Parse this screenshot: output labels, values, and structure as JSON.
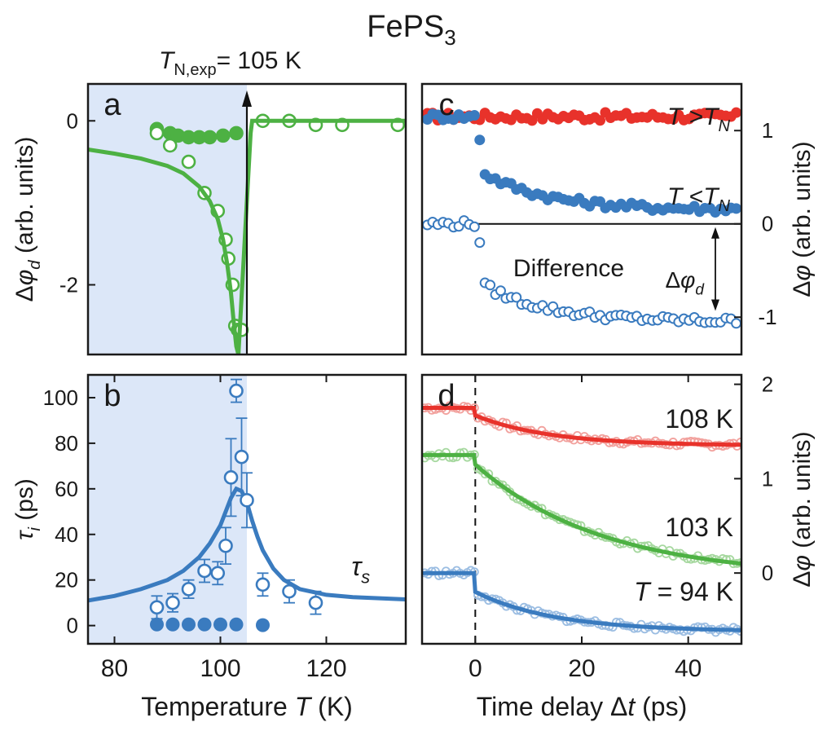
{
  "figure": {
    "title": "FePS",
    "title_sub": "3",
    "annotation_main": "T",
    "annotation_sub": "N,exp",
    "annotation_rest": "= 105 K"
  },
  "colors": {
    "green": "#4db143",
    "red": "#e8322b",
    "blue": "#3a7bbf",
    "shade": "#dce7f8",
    "axis": "#1a1a1a"
  },
  "chart_data": [
    {
      "panel": "a",
      "type": "scatter",
      "xlim": [
        75,
        135
      ],
      "ylim": [
        -2.85,
        0.45
      ],
      "yticks": [
        0,
        -2
      ],
      "ytick_labels": [
        "0",
        "-2"
      ],
      "ylabel": "Δφ_d (arb. units)",
      "shaded_region_x": [
        75,
        105
      ],
      "tn_arrow_x": 105,
      "series": [
        {
          "name": "filled",
          "style": "filled",
          "color": "green",
          "x": [
            88,
            90.5,
            92,
            94,
            96,
            98,
            100.5,
            103
          ],
          "y": [
            -0.1,
            -0.15,
            -0.18,
            -0.2,
            -0.2,
            -0.2,
            -0.18,
            -0.15
          ]
        },
        {
          "name": "open",
          "style": "open",
          "color": "green",
          "x": [
            88,
            90.5,
            94,
            97,
            99.5,
            101,
            101.5,
            102.3,
            102.8,
            103.3,
            104,
            108,
            113,
            118,
            123,
            133.5
          ],
          "y": [
            -0.15,
            -0.3,
            -0.5,
            -0.88,
            -1.1,
            -1.45,
            -1.68,
            -2.0,
            -2.5,
            -2.55,
            -2.55,
            0,
            0,
            -0.05,
            -0.05,
            -0.05
          ]
        },
        {
          "name": "fit",
          "style": "line",
          "color": "green",
          "x": [
            75,
            80,
            85,
            90,
            93,
            96,
            98,
            99.5,
            100.5,
            101.3,
            102,
            102.5,
            103,
            103.4,
            105.7,
            106,
            110,
            120,
            135
          ],
          "y": [
            -0.35,
            -0.4,
            -0.46,
            -0.55,
            -0.64,
            -0.8,
            -0.98,
            -1.2,
            -1.45,
            -1.75,
            -2.1,
            -2.45,
            -2.75,
            -2.85,
            -0.15,
            0,
            0,
            0,
            0
          ]
        }
      ]
    },
    {
      "panel": "b",
      "type": "scatter",
      "xlim": [
        75,
        135
      ],
      "ylim": [
        -8,
        110
      ],
      "xticks": [
        80,
        100,
        120
      ],
      "xtick_labels": [
        "80",
        "100",
        "120"
      ],
      "yticks": [
        0,
        20,
        40,
        60,
        80,
        100
      ],
      "ytick_labels": [
        "0",
        "20",
        "40",
        "60",
        "80",
        "100"
      ],
      "xlabel": "Temperature T (K)",
      "ylabel": "τ_i (ps)",
      "shaded_region_x": [
        75,
        105
      ],
      "fit_label": "τ_s",
      "series": [
        {
          "name": "τ_s",
          "style": "open",
          "color": "blue",
          "x": [
            88,
            91,
            94,
            97,
            99.5,
            101,
            102,
            103,
            104,
            105,
            108,
            113,
            118
          ],
          "y": [
            8,
            10,
            16,
            24,
            23,
            35,
            65,
            103,
            74,
            55,
            18,
            15,
            10
          ],
          "err": [
            5,
            4,
            4,
            5,
            5,
            8,
            17,
            5,
            17,
            12,
            5,
            5,
            5
          ]
        },
        {
          "name": "τ_fast",
          "style": "filled",
          "color": "blue",
          "x": [
            88,
            91,
            94,
            97,
            100,
            103,
            108
          ],
          "y": [
            0.5,
            0.5,
            0.5,
            0.5,
            0.5,
            0.5,
            0.2
          ]
        },
        {
          "name": "fit",
          "style": "line",
          "color": "blue",
          "x": [
            75,
            80,
            85,
            90,
            93,
            96,
            98,
            100,
            101,
            102,
            103,
            104,
            105,
            106,
            107,
            108,
            110,
            112,
            115,
            120,
            125,
            130,
            135
          ],
          "y": [
            11,
            13,
            16,
            20,
            24,
            30,
            36,
            44,
            50,
            56,
            60,
            59,
            54,
            46,
            39,
            33,
            25,
            20,
            16,
            13.5,
            12.5,
            12,
            11.5
          ]
        }
      ]
    },
    {
      "panel": "c",
      "type": "scatter",
      "xlim": [
        -10,
        50
      ],
      "ylim": [
        -1.4,
        1.5
      ],
      "yticks": [
        1,
        0,
        -1
      ],
      "ytick_labels": [
        "1",
        "0",
        "-1"
      ],
      "ylabel": "Δφ (arb. units)",
      "zero_line": 0,
      "legend": [
        "T >T_N",
        "T <T_N",
        "Difference"
      ],
      "diff_label": "Δφ_d",
      "series": [
        {
          "name": "T >T_N",
          "style": "filled",
          "color": "red",
          "model": "flat",
          "y0": 1.15,
          "n": 60
        },
        {
          "name": "T <T_N",
          "style": "filled",
          "color": "blue",
          "model": "decay",
          "y0": 1.15,
          "yinf": 0.15,
          "amp": 0.45,
          "tau": 12,
          "jump": 0.55,
          "n": 60
        },
        {
          "name": "Difference",
          "style": "open",
          "color": "blue",
          "model": "decay",
          "y0": 0.0,
          "yinf": -1.05,
          "amp": 0.45,
          "tau": 12,
          "jump": -0.55,
          "n": 60
        }
      ]
    },
    {
      "panel": "d",
      "type": "line",
      "xlim": [
        -10,
        50
      ],
      "ylim": [
        -0.75,
        2.1
      ],
      "xticks": [
        0,
        20,
        40
      ],
      "xtick_labels": [
        "0",
        "20",
        "40"
      ],
      "yticks": [
        2,
        1,
        0
      ],
      "ytick_labels": [
        "2",
        "1",
        "0"
      ],
      "xlabel": "Time delay Δt (ps)",
      "ylabel": "Δφ (arb. units)",
      "series": [
        {
          "name": "108 K",
          "color": "red",
          "base": 1.75,
          "yinf": 1.35,
          "jump": 0.08,
          "tau": 14
        },
        {
          "name": "103 K",
          "color": "green",
          "base": 1.25,
          "yinf": -0.05,
          "jump": 0.1,
          "tau": 24
        },
        {
          "name": "T = 94 K",
          "color": "blue",
          "base": 0.0,
          "yinf": -0.62,
          "jump": 0.2,
          "tau": 15
        }
      ]
    }
  ]
}
